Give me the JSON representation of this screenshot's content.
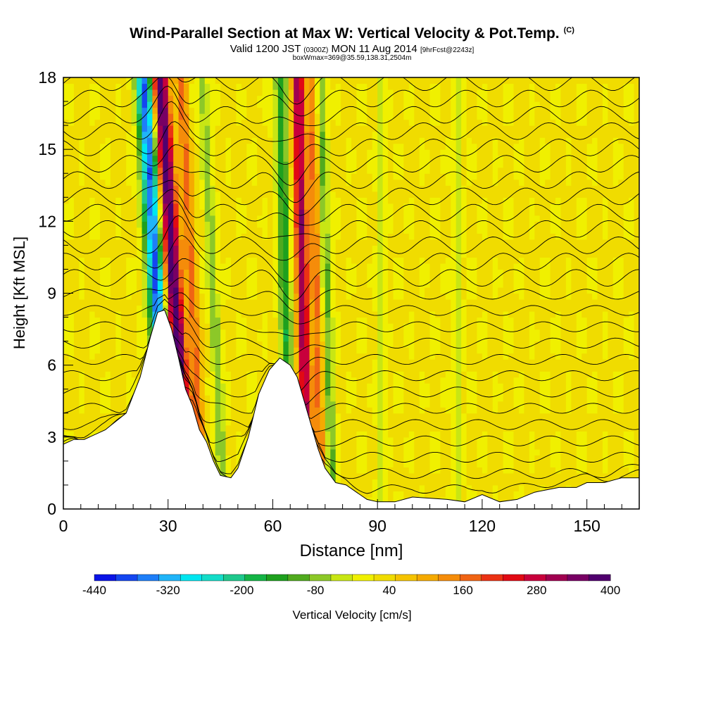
{
  "title": "Wind-Parallel Section at Max W: Vertical Velocity & Pot.Temp.",
  "title_mark": "(C)",
  "subtitle": {
    "valid": "Valid 1200 JST",
    "zulu": "(0300Z)",
    "date": "MON 11 Aug 2014",
    "fcst": "[9hrFcst@2243z]"
  },
  "subtitle2": "boxWmax=369@35.59,138.31,2504m",
  "colorbar": {
    "label": "Vertical Velocity [cm/s]",
    "tick_labels": [
      "-440",
      "-320",
      "-200",
      "-80",
      "40",
      "160",
      "280",
      "400"
    ],
    "colors": [
      "#0a14e6",
      "#1446f0",
      "#1e7ef8",
      "#20b4f8",
      "#00e6f0",
      "#14dcc8",
      "#1ec88c",
      "#14b446",
      "#1ea01e",
      "#50aa1e",
      "#8cc828",
      "#c8e614",
      "#f0f000",
      "#f0dc00",
      "#f5c300",
      "#f5aa00",
      "#f58c0a",
      "#f06414",
      "#eb3214",
      "#e10a14",
      "#c8003c",
      "#a00050",
      "#780064",
      "#50006e"
    ],
    "min": -440,
    "max": 400
  },
  "chart_data": {
    "type": "heatmap",
    "xlabel": "Distance [nm]",
    "ylabel": "Height [Kft MSL]",
    "xlim": [
      0,
      165
    ],
    "ylim": [
      0,
      18
    ],
    "xticks": [
      0,
      30,
      60,
      90,
      120,
      150
    ],
    "yticks": [
      0,
      3,
      6,
      9,
      12,
      15,
      18
    ],
    "terrain_kft": [
      [
        0,
        2.7
      ],
      [
        3,
        2.9
      ],
      [
        6,
        2.9
      ],
      [
        12,
        3.3
      ],
      [
        18,
        4
      ],
      [
        22,
        5.5
      ],
      [
        25,
        7.2
      ],
      [
        27,
        8.2
      ],
      [
        29,
        8.3
      ],
      [
        31,
        7.5
      ],
      [
        33,
        6.3
      ],
      [
        35,
        5
      ],
      [
        37,
        4.3
      ],
      [
        39,
        3.3
      ],
      [
        41,
        2.8
      ],
      [
        43,
        2
      ],
      [
        45,
        1.4
      ],
      [
        48,
        1.3
      ],
      [
        50,
        1.7
      ],
      [
        53,
        3
      ],
      [
        56,
        4.8
      ],
      [
        59,
        5.8
      ],
      [
        62,
        6.3
      ],
      [
        65,
        6
      ],
      [
        67,
        5.5
      ],
      [
        69,
        4.5
      ],
      [
        71,
        3.5
      ],
      [
        73,
        2.5
      ],
      [
        75,
        1.7
      ],
      [
        78,
        1.1
      ],
      [
        81,
        1
      ],
      [
        84,
        0.7
      ],
      [
        87,
        0.4
      ],
      [
        90,
        0.3
      ],
      [
        95,
        0.3
      ],
      [
        100,
        0.5
      ],
      [
        110,
        0.4
      ],
      [
        115,
        0.3
      ],
      [
        120,
        0.6
      ],
      [
        125,
        0.3
      ],
      [
        130,
        0.4
      ],
      [
        135,
        0.7
      ],
      [
        142,
        0.9
      ],
      [
        147,
        0.9
      ],
      [
        150,
        1.1
      ],
      [
        155,
        1.1
      ],
      [
        160,
        1.3
      ],
      [
        165,
        1.3
      ]
    ],
    "vertical_velocity_bands": [
      {
        "center_x": 33,
        "tilt": 0.45,
        "width": 2.5,
        "value": 390
      },
      {
        "center_x": 28,
        "tilt": 0.4,
        "width": 2.5,
        "value": -400
      },
      {
        "center_x": 38,
        "tilt": 0.35,
        "width": 1.5,
        "value": 150
      },
      {
        "center_x": 44,
        "tilt": 0.35,
        "width": 1.5,
        "value": -100
      },
      {
        "center_x": 69,
        "tilt": 0.15,
        "width": 1.8,
        "value": 300
      },
      {
        "center_x": 64,
        "tilt": 0.15,
        "width": 1.8,
        "value": -170
      },
      {
        "center_x": 73,
        "tilt": 0.15,
        "width": 1.5,
        "value": 140
      },
      {
        "center_x": 76,
        "tilt": 0.2,
        "width": 1.5,
        "value": -120
      },
      {
        "center_x": 91,
        "tilt": 0.0,
        "width": 1.2,
        "value": -60
      },
      {
        "center_x": 113,
        "tilt": 0.0,
        "width": 1.2,
        "value": -60
      }
    ],
    "background_vertical_velocity": 20
  }
}
